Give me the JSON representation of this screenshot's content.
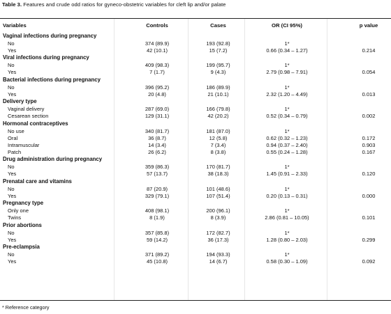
{
  "caption": {
    "label": "Table 3.",
    "text": " Features and crude odd ratios for gyneco-obstetric variables for cleft lip and/or palate"
  },
  "columns": [
    "Variables",
    "Controls",
    "Cases",
    "OR (CI 95%)",
    "p value"
  ],
  "groups": [
    {
      "title": "Vaginal infections during pregnancy",
      "rows": [
        {
          "label": "No",
          "controls": "374 (89.9)",
          "cases": "193 (92.8)",
          "or": "1*",
          "p": ""
        },
        {
          "label": "Yes",
          "controls": "42 (10.1)",
          "cases": "15 (7.2)",
          "or": "0.66 (0.34 – 1.27)",
          "p": "0.214"
        }
      ]
    },
    {
      "title": "Viral infections during pregnancy",
      "rows": [
        {
          "label": "No",
          "controls": "409 (98.3)",
          "cases": "199 (95.7)",
          "or": "1*",
          "p": ""
        },
        {
          "label": "Yes",
          "controls": "7 (1.7)",
          "cases": "9 (4.3)",
          "or": "2.79 (0.98 – 7.91)",
          "p": "0.054"
        }
      ]
    },
    {
      "title": "Bacterial infections during pregnancy",
      "rows": [
        {
          "label": "No",
          "controls": "396 (95.2)",
          "cases": "186 (89.9)",
          "or": "1*",
          "p": ""
        },
        {
          "label": "Yes",
          "controls": "20 (4.8)",
          "cases": "21 (10.1)",
          "or": "2.32 (1.20 – 4.49)",
          "p": "0.013"
        }
      ]
    },
    {
      "title": "Delivery type",
      "rows": [
        {
          "label": "Vaginal delivery",
          "controls": "287 (69.0)",
          "cases": "166 (79.8)",
          "or": "1*",
          "p": ""
        },
        {
          "label": "Cesarean section",
          "controls": "129 (31.1)",
          "cases": "42 (20.2)",
          "or": "0.52 (0.34 – 0.79)",
          "p": "0.002"
        }
      ]
    },
    {
      "title": "Hormonal contraceptives",
      "rows": [
        {
          "label": "No use",
          "controls": "340 (81.7)",
          "cases": "181 (87.0)",
          "or": "1*",
          "p": ""
        },
        {
          "label": "Oral",
          "controls": "36 (8.7)",
          "cases": "12 (5.8)",
          "or": "0.62 (0.32 – 1.23)",
          "p": "0.172"
        },
        {
          "label": "Intramuscular",
          "controls": "14 (3.4)",
          "cases": "7 (3.4)",
          "or": "0.94 (0.37 – 2.40)",
          "p": "0.903"
        },
        {
          "label": "Patch",
          "controls": "26 (6.2)",
          "cases": "8 (3.8)",
          "or": "0.55 (0.24 – 1.28)",
          "p": "0.167"
        }
      ]
    },
    {
      "title": "Drug administration during pregnancy",
      "rows": [
        {
          "label": "No",
          "controls": "359 (86.3)",
          "cases": "170 (81.7)",
          "or": "1*",
          "p": ""
        },
        {
          "label": "Yes",
          "controls": "57 (13.7)",
          "cases": "38 (18.3)",
          "or": "1.45 (0.91 – 2.33)",
          "p": "0.120"
        }
      ]
    },
    {
      "title": "Prenatal care and vitamins",
      "rows": [
        {
          "label": "No",
          "controls": "87 (20.9)",
          "cases": "101 (48.6)",
          "or": "1*",
          "p": ""
        },
        {
          "label": "Yes",
          "controls": "329 (79.1)",
          "cases": "107 (51.4)",
          "or": "0.20 (0.13 – 0.31)",
          "p": "0.000"
        }
      ]
    },
    {
      "title": "Pregnancy type",
      "rows": [
        {
          "label": "Only one",
          "controls": "408 (98.1)",
          "cases": "200 (96.1)",
          "or": "1*",
          "p": ""
        },
        {
          "label": "Twins",
          "controls": "8 (1.9)",
          "cases": "8 (3.9)",
          "or": "2.86 (0.81 – 10.05)",
          "p": "0.101"
        }
      ]
    },
    {
      "title": "Prior abortions",
      "rows": [
        {
          "label": "No",
          "controls": "357 (85.8)",
          "cases": "172 (82.7)",
          "or": "1*",
          "p": ""
        },
        {
          "label": "Yes",
          "controls": "59 (14.2)",
          "cases": "36 (17.3)",
          "or": "1.28 (0.80 – 2.03)",
          "p": "0.299"
        }
      ]
    },
    {
      "title": "Pre-eclampsia",
      "rows": [
        {
          "label": "No",
          "controls": "371 (89.2)",
          "cases": "194 (93.3)",
          "or": "1*",
          "p": ""
        },
        {
          "label": "Yes",
          "controls": "45 (10.8)",
          "cases": "14 (6.7)",
          "or": "0.58 (0.30 – 1.09)",
          "p": "0.092"
        }
      ]
    }
  ],
  "footnote": "* Reference category"
}
